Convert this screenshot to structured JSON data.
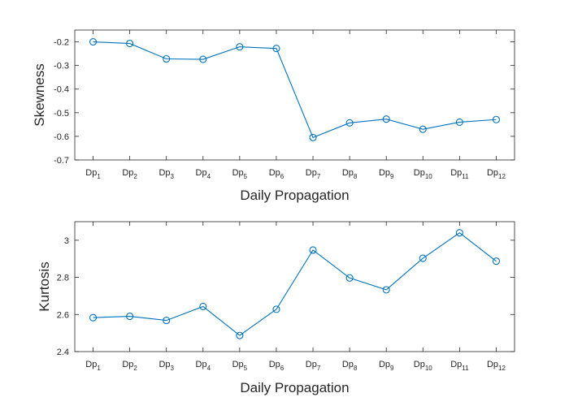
{
  "chart_data": [
    {
      "type": "line",
      "categories": [
        {
          "base": "Dp",
          "sub": "1"
        },
        {
          "base": "Dp",
          "sub": "2"
        },
        {
          "base": "Dp",
          "sub": "3"
        },
        {
          "base": "Dp",
          "sub": "4"
        },
        {
          "base": "Dp",
          "sub": "5"
        },
        {
          "base": "Dp",
          "sub": "6"
        },
        {
          "base": "Dp",
          "sub": "7"
        },
        {
          "base": "Dp",
          "sub": "8"
        },
        {
          "base": "Dp",
          "sub": "9"
        },
        {
          "base": "Dp",
          "sub": "10"
        },
        {
          "base": "Dp",
          "sub": "11"
        },
        {
          "base": "Dp",
          "sub": "12"
        }
      ],
      "values": [
        -0.2,
        -0.207,
        -0.272,
        -0.274,
        -0.221,
        -0.228,
        -0.605,
        -0.543,
        -0.527,
        -0.57,
        -0.54,
        -0.529
      ],
      "xlabel": "Daily Propagation",
      "ylabel": "Skewness",
      "ylim": [
        -0.7,
        -0.15
      ],
      "yticks": [
        -0.7,
        -0.6,
        -0.5,
        -0.4,
        -0.3,
        -0.2
      ],
      "ytick_labels": [
        "-0.7",
        "-0.6",
        "-0.5",
        "-0.4",
        "-0.3",
        "-0.2"
      ],
      "marker": "circle",
      "color": "#0072BD",
      "grid": false
    },
    {
      "type": "line",
      "categories": [
        {
          "base": "Dp",
          "sub": "1"
        },
        {
          "base": "Dp",
          "sub": "2"
        },
        {
          "base": "Dp",
          "sub": "3"
        },
        {
          "base": "Dp",
          "sub": "4"
        },
        {
          "base": "Dp",
          "sub": "5"
        },
        {
          "base": "Dp",
          "sub": "6"
        },
        {
          "base": "Dp",
          "sub": "7"
        },
        {
          "base": "Dp",
          "sub": "8"
        },
        {
          "base": "Dp",
          "sub": "9"
        },
        {
          "base": "Dp",
          "sub": "10"
        },
        {
          "base": "Dp",
          "sub": "11"
        },
        {
          "base": "Dp",
          "sub": "12"
        }
      ],
      "values": [
        2.583,
        2.59,
        2.568,
        2.643,
        2.487,
        2.628,
        2.947,
        2.797,
        2.733,
        2.903,
        3.04,
        2.887
      ],
      "xlabel": "Daily Propagation",
      "ylabel": "Kurtosis",
      "ylim": [
        2.4,
        3.1
      ],
      "yticks": [
        2.4,
        2.6,
        2.8,
        3.0
      ],
      "ytick_labels": [
        "2.4",
        "2.6",
        "2.8",
        "3"
      ],
      "marker": "circle",
      "color": "#0072BD",
      "grid": false
    }
  ]
}
